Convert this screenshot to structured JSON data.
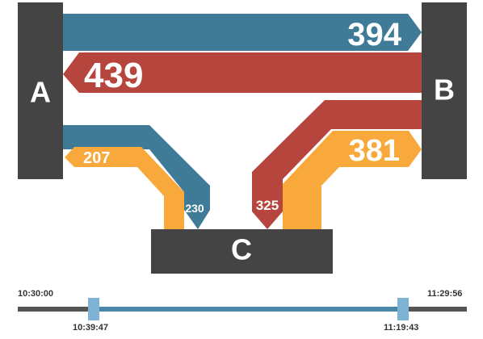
{
  "colors": {
    "node": "#444444",
    "a_to_b": "#3f7a96",
    "b_to_a": "#b5453d",
    "a_to_c": "#3f7a96",
    "c_to_a": "#f9a93b",
    "b_to_c": "#b5453d",
    "c_to_b": "#f9a93b",
    "track": "#555555",
    "range": "#4a86a8",
    "handle": "#7fb3d5"
  },
  "nodes": {
    "a": "A",
    "b": "B",
    "c": "C"
  },
  "flows": {
    "a_to_b": "394",
    "b_to_a": "439",
    "c_to_a": "207",
    "a_to_c": "230",
    "b_to_c": "325",
    "c_to_b": "381"
  },
  "timeline": {
    "start": "10:30:00",
    "end": "11:29:56",
    "handle_left": "10:39:47",
    "handle_right": "11:19:43"
  }
}
